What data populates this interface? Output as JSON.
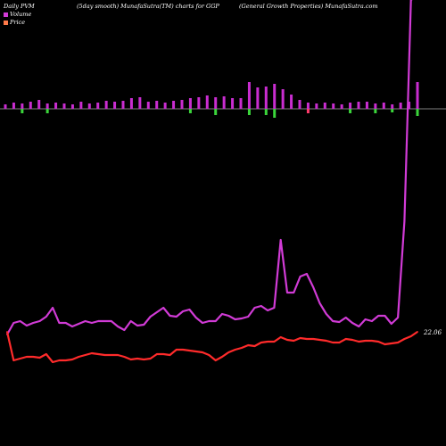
{
  "header": {
    "left": "Daily PVM",
    "middle": "(5day smooth) MunafaSutra(TM) charts for GGP",
    "right": "(General Growth Properties) MunafaSutra.com"
  },
  "legend": [
    {
      "label": "Volume",
      "color": "#d13bd6"
    },
    {
      "label": "Price",
      "color": "#ff7a4a"
    }
  ],
  "price_label": "22.06",
  "colors": {
    "volume_line": "#d13bd6",
    "price_line": "#ff2b2b",
    "bar_up": "#c92dd0",
    "bar_down_pink": "#ff3b6b",
    "bar_down_green": "#3bd63b",
    "zero_line": "#aaaaaa"
  },
  "chart_data": {
    "type": "line",
    "series": [
      {
        "name": "Volume",
        "values": [
          375,
          362,
          360,
          365,
          362,
          360,
          355,
          345,
          362,
          362,
          366,
          363,
          360,
          362,
          360,
          360,
          360,
          366,
          370,
          360,
          365,
          364,
          355,
          350,
          345,
          354,
          355,
          349,
          347,
          356,
          362,
          360,
          360,
          352,
          354,
          358,
          357,
          355,
          345,
          343,
          348,
          345,
          269,
          328,
          328,
          310,
          307,
          322,
          340,
          352,
          360,
          361,
          356,
          362,
          366,
          358,
          360,
          354,
          354,
          363,
          356,
          248,
          0,
          -5
        ]
      },
      {
        "name": "Price",
        "values": [
          372,
          404,
          402,
          400,
          400,
          401,
          397,
          406,
          404,
          404,
          403,
          400,
          398,
          396,
          397,
          398,
          398,
          398,
          400,
          403,
          402,
          403,
          402,
          397,
          397,
          398,
          392,
          392,
          393,
          394,
          395,
          398,
          404,
          400,
          395,
          392,
          390,
          387,
          388,
          384,
          383,
          383,
          378,
          381,
          382,
          379,
          380,
          380,
          381,
          382,
          384,
          384,
          380,
          381,
          383,
          382,
          382,
          383,
          386,
          385,
          384,
          380,
          377,
          372
        ]
      }
    ],
    "volume_bars": {
      "up": [
        5,
        7,
        6,
        8,
        10,
        6,
        7,
        6,
        5,
        8,
        6,
        7,
        9,
        8,
        9,
        12,
        13,
        8,
        9,
        7,
        9,
        10,
        12,
        13,
        15,
        13,
        14,
        12,
        12,
        30,
        24,
        25,
        28,
        22,
        16,
        10,
        7,
        6,
        7,
        6,
        5,
        7,
        8,
        8,
        6,
        7,
        5,
        7,
        8,
        30
      ],
      "down": [
        0,
        0,
        -5,
        0,
        0,
        -5,
        0,
        0,
        0,
        0,
        0,
        0,
        0,
        0,
        0,
        0,
        0,
        0,
        0,
        0,
        0,
        0,
        -5,
        0,
        0,
        -7,
        0,
        0,
        0,
        -7,
        0,
        -7,
        -10,
        0,
        0,
        0,
        -5,
        0,
        0,
        0,
        0,
        -5,
        0,
        0,
        -5,
        0,
        -4,
        0,
        0,
        -8
      ]
    },
    "price_label": "22.06"
  }
}
